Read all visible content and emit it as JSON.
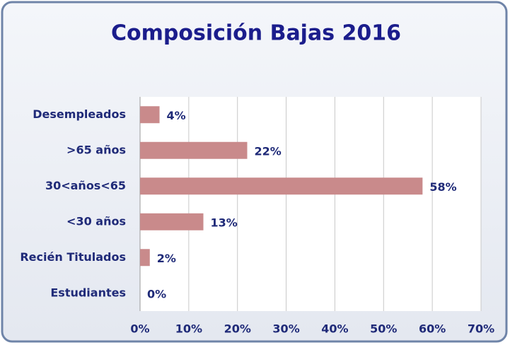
{
  "chart_data": {
    "type": "hbar",
    "title": "Composición Bajas  2016",
    "categories": [
      "Desempleados",
      ">65 años",
      "30<años<65",
      "<30 años",
      "Recién Titulados",
      "Estudiantes"
    ],
    "values": [
      4,
      22,
      58,
      13,
      2,
      0
    ],
    "value_labels": [
      "4%",
      "22%",
      "58%",
      "13%",
      "2%",
      "0%"
    ],
    "color": "#c98a8b",
    "xlim": [
      0,
      70
    ],
    "xticks": [
      {
        "value": 0,
        "label": "0%"
      },
      {
        "value": 10,
        "label": "10%"
      },
      {
        "value": 20,
        "label": "20%"
      },
      {
        "value": 30,
        "label": "30%"
      },
      {
        "value": 40,
        "label": "40%"
      },
      {
        "value": 50,
        "label": "50%"
      },
      {
        "value": 60,
        "label": "60%"
      },
      {
        "value": 70,
        "label": "70%"
      }
    ],
    "grid": true
  }
}
